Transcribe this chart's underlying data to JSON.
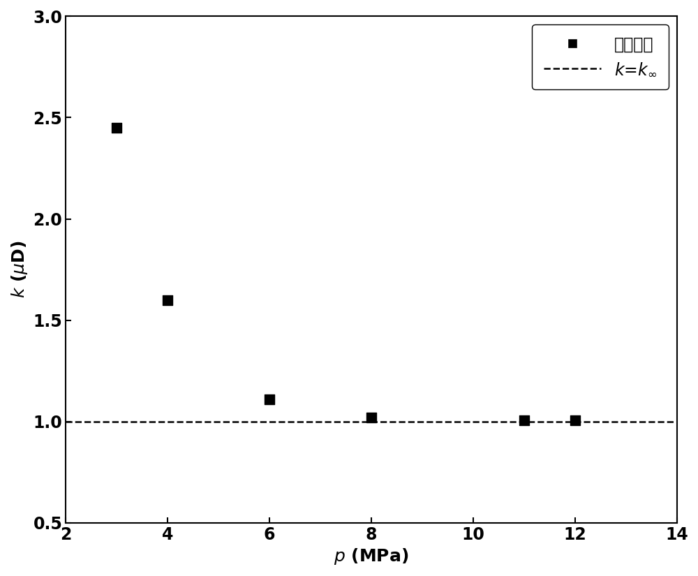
{
  "x_data": [
    3,
    4,
    6,
    8,
    11,
    12
  ],
  "y_data": [
    2.45,
    1.6,
    1.11,
    1.02,
    1.005,
    1.005
  ],
  "dashed_line_y": 1.0,
  "xlim": [
    2,
    14
  ],
  "ylim": [
    0.5,
    3.0
  ],
  "xticks": [
    2,
    4,
    6,
    8,
    10,
    12,
    14
  ],
  "yticks": [
    0.5,
    1.0,
    1.5,
    2.0,
    2.5,
    3.0
  ],
  "legend_data_label": "试验数据",
  "marker": "s",
  "marker_color": "#000000",
  "marker_size": 10,
  "line_color": "#000000",
  "line_style": "--",
  "line_width": 1.8,
  "background_color": "#ffffff",
  "label_fontsize": 18,
  "tick_fontsize": 17,
  "legend_fontsize": 17
}
